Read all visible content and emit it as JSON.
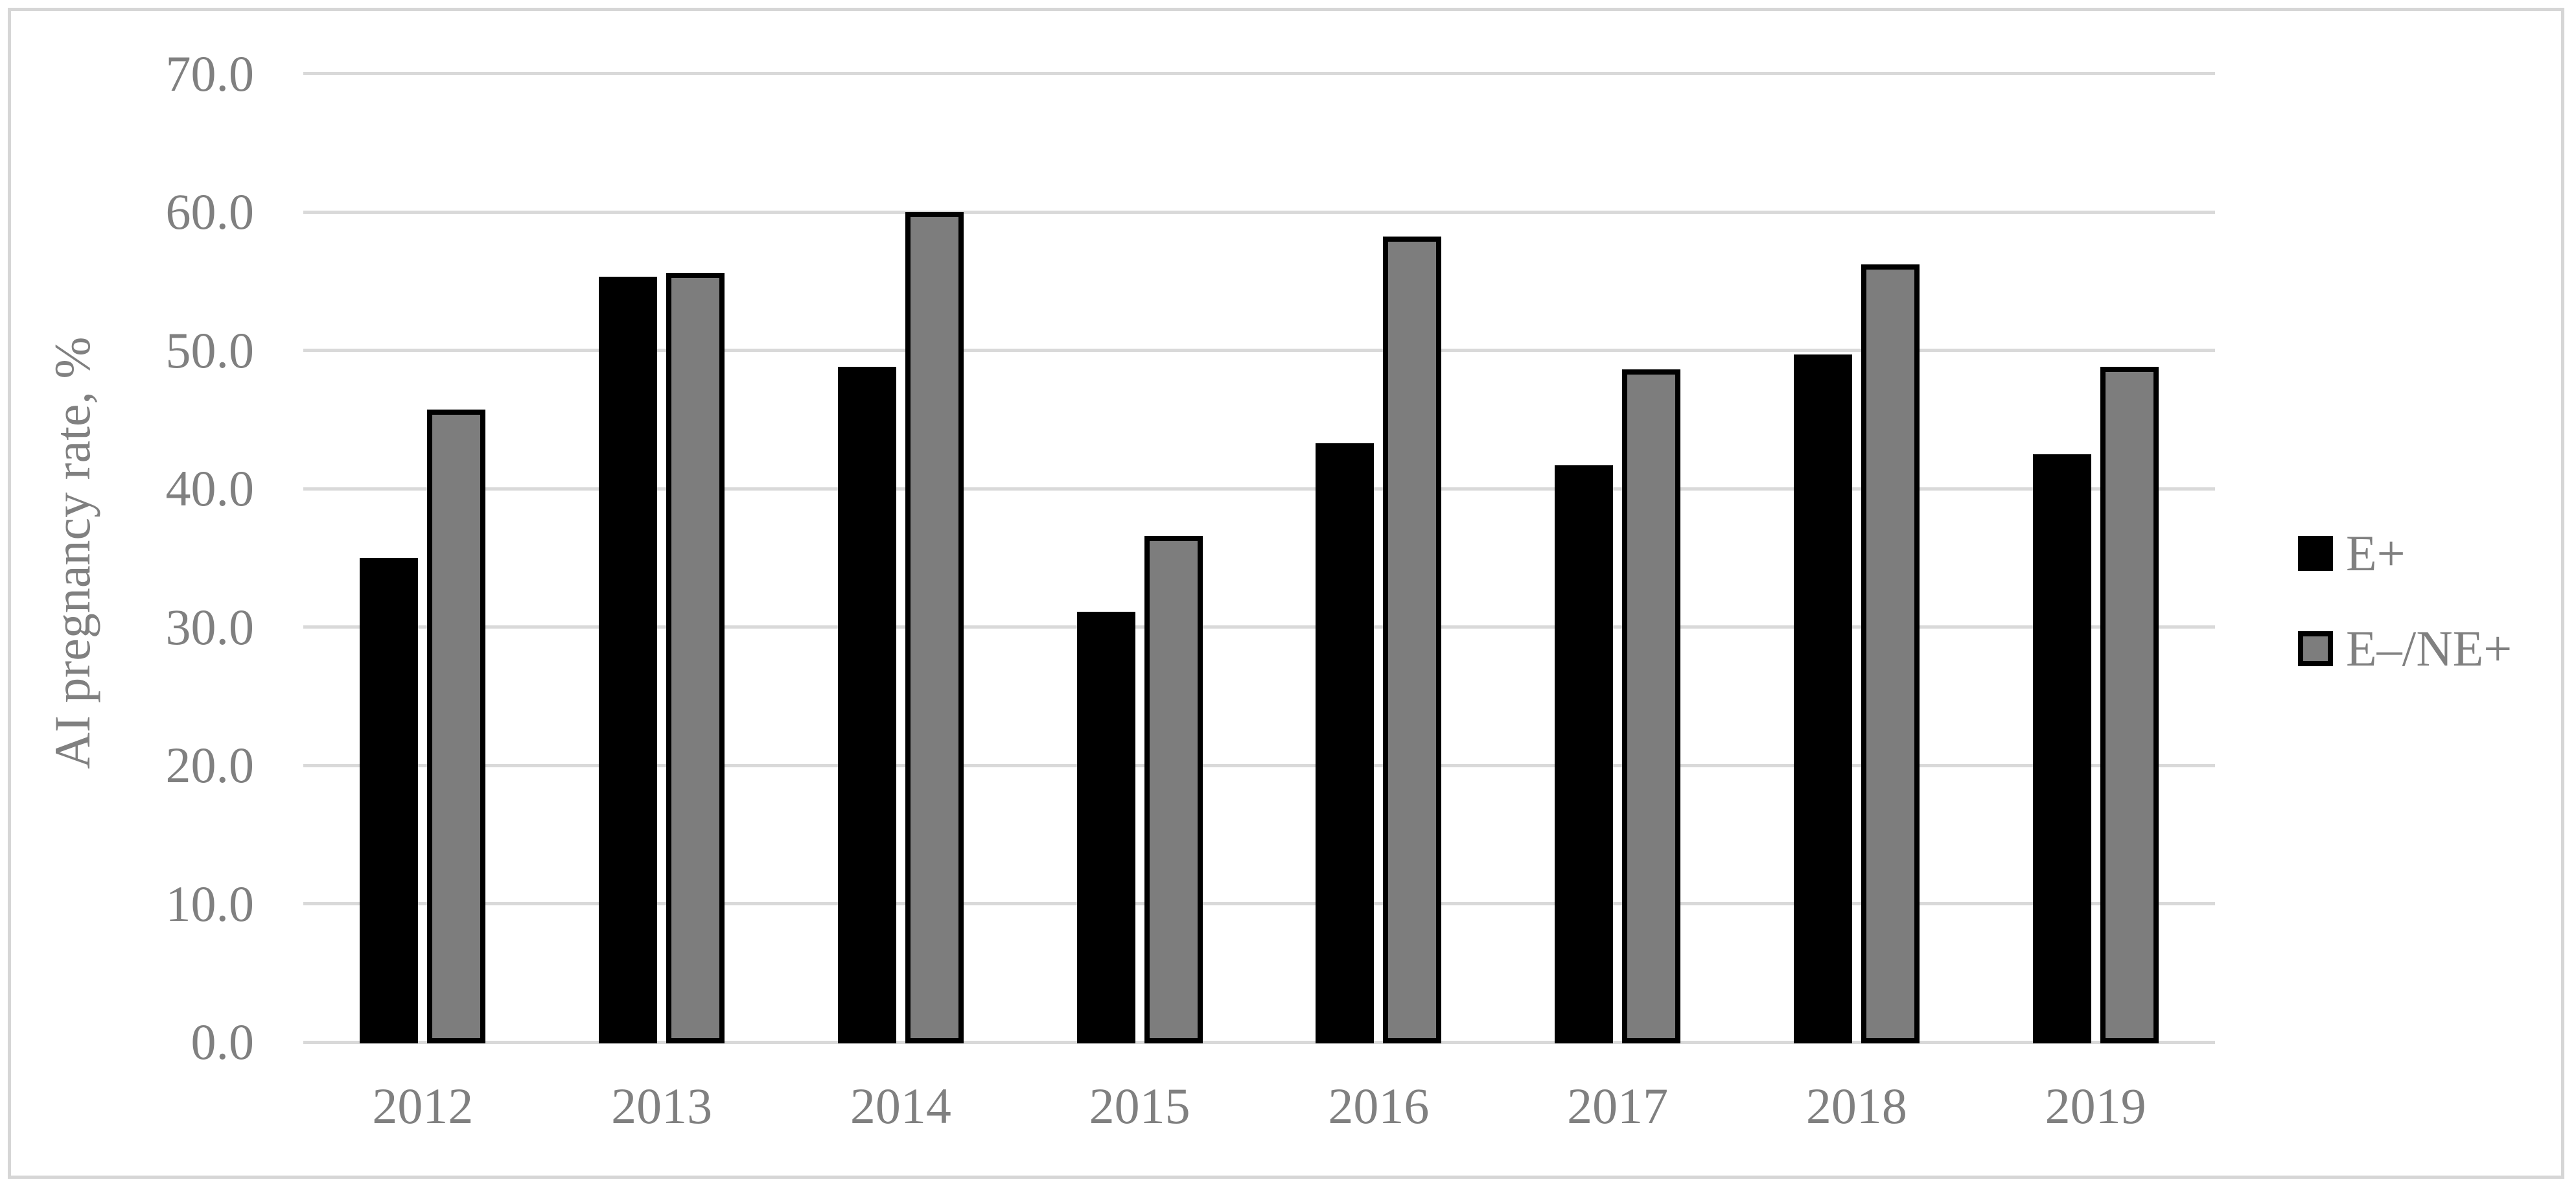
{
  "figure": {
    "background": "#ffffff",
    "border_color": "#d6d6d6"
  },
  "chart_data": {
    "type": "bar",
    "title": "",
    "xlabel": "",
    "ylabel": "AI pregnancy rate, %",
    "categories": [
      "2012",
      "2013",
      "2014",
      "2015",
      "2016",
      "2017",
      "2018",
      "2019"
    ],
    "series": [
      {
        "name": "E+",
        "color": "#000000",
        "border_color": "#000000",
        "values": [
          35.0,
          55.3,
          48.8,
          31.1,
          43.3,
          41.7,
          49.7,
          42.5
        ]
      },
      {
        "name": "E–/NE+",
        "color": "#7d7d7d",
        "border_color": "#000000",
        "values": [
          45.7,
          55.6,
          60.0,
          36.6,
          58.2,
          48.6,
          56.2,
          48.8
        ]
      }
    ],
    "ylim": [
      0,
      70
    ],
    "ytick_step": 10,
    "ytick_labels": [
      "0.0",
      "10.0",
      "20.0",
      "30.0",
      "40.0",
      "50.0",
      "60.0",
      "70.0"
    ],
    "grid": true,
    "gridline_color": "#d9d9d9",
    "axis_text_color": "#808080",
    "legend_position": "right"
  }
}
